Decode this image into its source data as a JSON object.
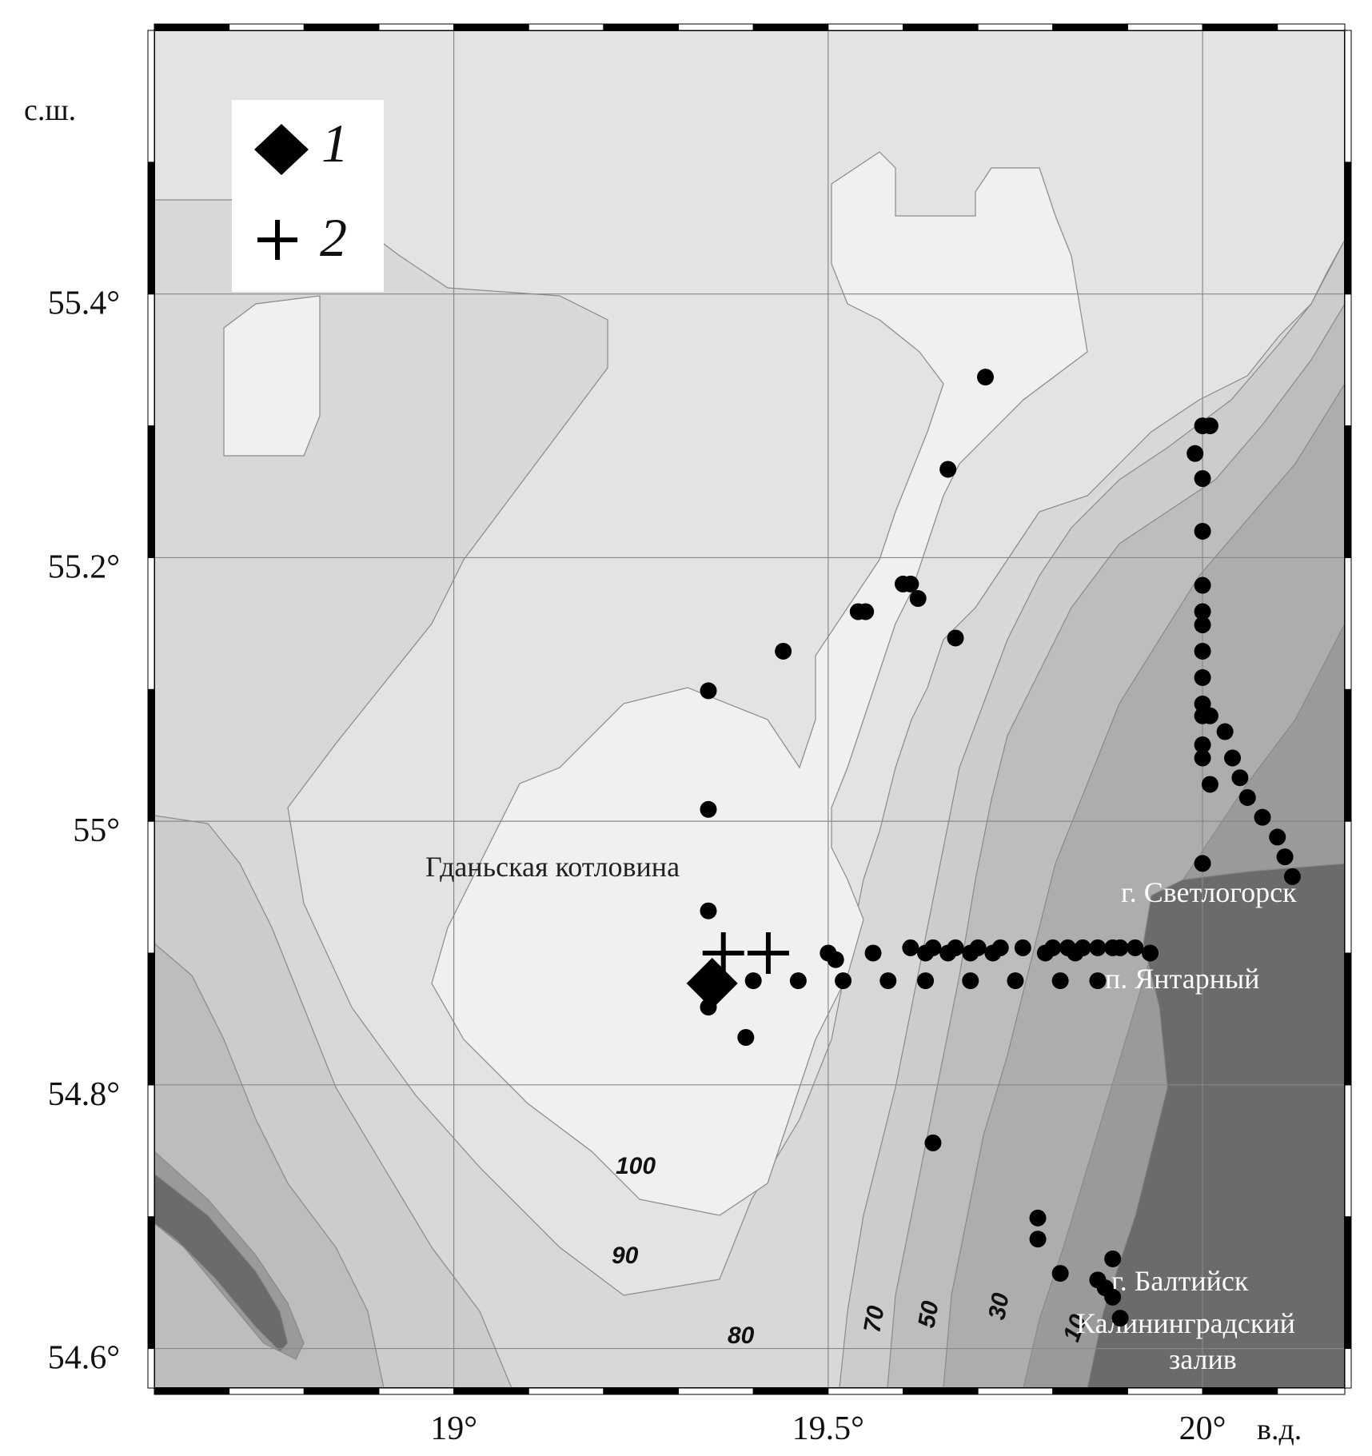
{
  "map": {
    "axis_units": {
      "lat": "с.ш.",
      "lon": "в.д."
    },
    "lat_ticks": [
      {
        "value": 55.4,
        "label": "55.4°"
      },
      {
        "value": 55.2,
        "label": "55.2°"
      },
      {
        "value": 55.0,
        "label": "55°"
      },
      {
        "value": 54.8,
        "label": "54.8°"
      },
      {
        "value": 54.6,
        "label": "54.6°"
      }
    ],
    "lon_ticks": [
      {
        "value": 19.0,
        "label": "19°"
      },
      {
        "value": 19.5,
        "label": "19.5°"
      },
      {
        "value": 20.0,
        "label": "20°"
      }
    ],
    "legend": [
      {
        "symbol": "diamond",
        "label": "1"
      },
      {
        "symbol": "cross",
        "label": "2"
      }
    ],
    "places": {
      "basin": "Гданьская котловина",
      "svetlogorsk": "г. Светлогорск",
      "yantarny": "п. Янтарный",
      "baltiysk": "г. Балтийск",
      "lagoon_line1": "Калининградский",
      "lagoon_line2": "залив"
    },
    "contours": [
      "100",
      "90",
      "80",
      "70",
      "50",
      "30",
      "10"
    ],
    "colors": {
      "depth_100_plus": "#f0f0f0",
      "depth_90_100": "#e3e3e3",
      "depth_80_90": "#d8d8d8",
      "depth_70_80": "#cccccc",
      "depth_50_70": "#bdbdbd",
      "depth_30_50": "#adadad",
      "depth_10_30": "#9a9a9a",
      "land": "#6b6b6b"
    },
    "stations": [
      [
        19.71,
        55.337
      ],
      [
        19.66,
        55.267
      ],
      [
        20.0,
        55.3
      ],
      [
        20.01,
        55.3
      ],
      [
        19.99,
        55.279
      ],
      [
        20.0,
        55.26
      ],
      [
        20.0,
        55.22
      ],
      [
        19.6,
        55.18
      ],
      [
        19.61,
        55.18
      ],
      [
        19.62,
        55.169
      ],
      [
        19.54,
        55.159
      ],
      [
        19.55,
        55.159
      ],
      [
        19.44,
        55.129
      ],
      [
        19.67,
        55.139
      ],
      [
        20.0,
        55.179
      ],
      [
        20.0,
        55.159
      ],
      [
        20.0,
        55.149
      ],
      [
        20.0,
        55.129
      ],
      [
        20.0,
        55.109
      ],
      [
        20.0,
        55.089
      ],
      [
        20.0,
        55.08
      ],
      [
        20.01,
        55.08
      ],
      [
        20.03,
        55.068
      ],
      [
        20.0,
        55.058
      ],
      [
        20.0,
        55.048
      ],
      [
        20.04,
        55.048
      ],
      [
        20.05,
        55.033
      ],
      [
        20.01,
        55.028
      ],
      [
        20.06,
        55.018
      ],
      [
        20.08,
        55.003
      ],
      [
        20.1,
        54.988
      ],
      [
        20.11,
        54.973
      ],
      [
        20.12,
        54.958
      ],
      [
        20.0,
        54.968
      ],
      [
        19.34,
        55.099
      ],
      [
        19.34,
        55.009
      ],
      [
        19.34,
        54.932
      ],
      [
        19.5,
        54.9
      ],
      [
        19.51,
        54.895
      ],
      [
        19.56,
        54.9
      ],
      [
        19.61,
        54.904
      ],
      [
        19.63,
        54.9
      ],
      [
        19.64,
        54.904
      ],
      [
        19.66,
        54.9
      ],
      [
        19.67,
        54.904
      ],
      [
        19.69,
        54.9
      ],
      [
        19.7,
        54.904
      ],
      [
        19.72,
        54.9
      ],
      [
        19.73,
        54.904
      ],
      [
        19.76,
        54.904
      ],
      [
        19.79,
        54.9
      ],
      [
        19.8,
        54.904
      ],
      [
        19.82,
        54.904
      ],
      [
        19.83,
        54.9
      ],
      [
        19.84,
        54.904
      ],
      [
        19.86,
        54.904
      ],
      [
        19.88,
        54.904
      ],
      [
        19.89,
        54.904
      ],
      [
        19.91,
        54.904
      ],
      [
        19.93,
        54.9
      ],
      [
        19.4,
        54.879
      ],
      [
        19.46,
        54.879
      ],
      [
        19.52,
        54.879
      ],
      [
        19.58,
        54.879
      ],
      [
        19.63,
        54.879
      ],
      [
        19.69,
        54.879
      ],
      [
        19.75,
        54.879
      ],
      [
        19.81,
        54.879
      ],
      [
        19.86,
        54.879
      ],
      [
        19.34,
        54.859
      ],
      [
        19.39,
        54.836
      ],
      [
        19.64,
        54.756
      ],
      [
        19.78,
        54.699
      ],
      [
        19.78,
        54.683
      ],
      [
        19.81,
        54.657
      ],
      [
        19.86,
        54.652
      ],
      [
        19.87,
        54.646
      ],
      [
        19.88,
        54.668
      ],
      [
        19.88,
        54.639
      ],
      [
        19.89,
        54.623
      ]
    ],
    "diamonds": [
      [
        19.345,
        54.877
      ]
    ],
    "crosses": [
      [
        19.36,
        54.9
      ],
      [
        19.42,
        54.9
      ]
    ]
  }
}
